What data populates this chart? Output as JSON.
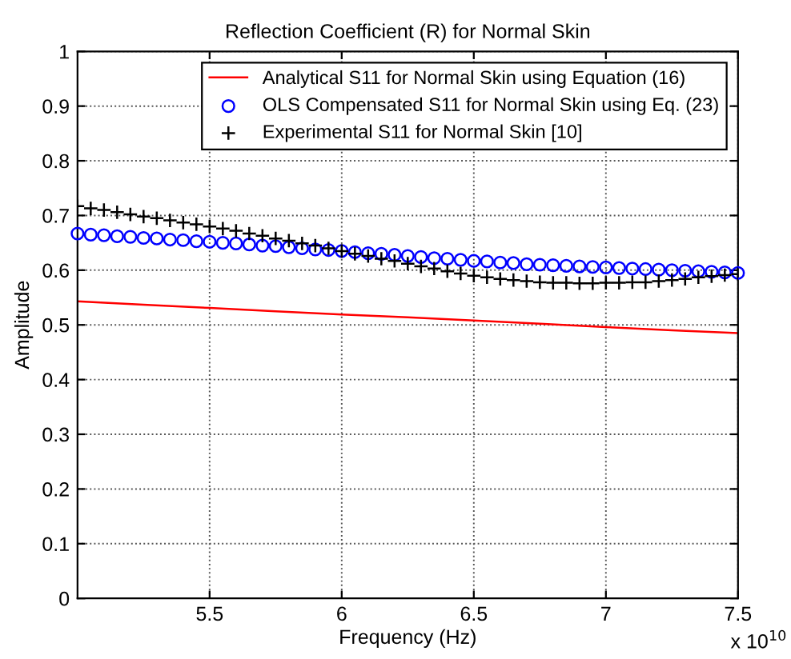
{
  "chart_data": {
    "type": "line",
    "title": "Reflection Coefficient (R) for Normal Skin",
    "xlabel": "Frequency (Hz)",
    "ylabel": "Amplitude",
    "annotations": [
      "x 10$^{10}$"
    ],
    "xlim": [
      5.0,
      7.5
    ],
    "xticks": [
      5.5,
      6,
      6.5,
      7,
      7.5
    ],
    "ylim": [
      0,
      1
    ],
    "yticks": [
      0,
      0.1,
      0.2,
      0.3,
      0.4,
      0.5,
      0.6,
      0.7,
      0.8,
      0.9,
      1
    ],
    "grid": true,
    "legend": "top right",
    "series": [
      {
        "name": "Analytical S11 for Normal Skin using Equation (16)",
        "color": "#ff0000",
        "marker": "none",
        "line_style": "solid",
        "x": [
          5.0,
          5.25,
          5.5,
          5.75,
          6.0,
          6.25,
          6.5,
          6.75,
          7.0,
          7.25,
          7.5
        ],
        "values": [
          0.543,
          0.537,
          0.531,
          0.525,
          0.519,
          0.514,
          0.508,
          0.502,
          0.496,
          0.49,
          0.485
        ]
      },
      {
        "name": "OLS Compensated S11 for Normal Skin using Eq. (23)",
        "color": "#0000ff",
        "type": "scatter",
        "marker": "circle",
        "x": [
          5.0,
          5.05,
          5.1,
          5.15,
          5.2,
          5.25,
          5.3,
          5.35,
          5.4,
          5.45,
          5.5,
          5.55,
          5.6,
          5.65,
          5.7,
          5.75,
          5.8,
          5.85,
          5.9,
          5.95,
          6.0,
          6.05,
          6.1,
          6.15,
          6.2,
          6.25,
          6.3,
          6.35,
          6.4,
          6.45,
          6.5,
          6.55,
          6.6,
          6.65,
          6.7,
          6.75,
          6.8,
          6.85,
          6.9,
          6.95,
          7.0,
          7.05,
          7.1,
          7.15,
          7.2,
          7.25,
          7.3,
          7.35,
          7.4,
          7.45,
          7.5
        ],
        "values": [
          0.667,
          0.665,
          0.664,
          0.662,
          0.661,
          0.659,
          0.658,
          0.656,
          0.655,
          0.653,
          0.652,
          0.65,
          0.649,
          0.647,
          0.645,
          0.644,
          0.642,
          0.64,
          0.638,
          0.637,
          0.635,
          0.633,
          0.631,
          0.63,
          0.628,
          0.626,
          0.624,
          0.622,
          0.621,
          0.619,
          0.617,
          0.616,
          0.614,
          0.613,
          0.611,
          0.61,
          0.609,
          0.608,
          0.607,
          0.606,
          0.605,
          0.604,
          0.603,
          0.602,
          0.601,
          0.6,
          0.599,
          0.598,
          0.597,
          0.596,
          0.595
        ]
      },
      {
        "name": "Experimental S11 for Normal Skin [10]",
        "color": "#000000",
        "type": "scatter",
        "marker": "cross",
        "x": [
          5.0,
          5.05,
          5.1,
          5.15,
          5.2,
          5.25,
          5.3,
          5.35,
          5.4,
          5.45,
          5.5,
          5.55,
          5.6,
          5.65,
          5.7,
          5.75,
          5.8,
          5.85,
          5.9,
          5.95,
          6.0,
          6.05,
          6.1,
          6.15,
          6.2,
          6.25,
          6.3,
          6.35,
          6.4,
          6.45,
          6.5,
          6.55,
          6.6,
          6.65,
          6.7,
          6.75,
          6.8,
          6.85,
          6.9,
          6.95,
          7.0,
          7.05,
          7.1,
          7.15,
          7.2,
          7.25,
          7.3,
          7.35,
          7.4,
          7.45,
          7.5
        ],
        "values": [
          0.717,
          0.713,
          0.71,
          0.706,
          0.702,
          0.698,
          0.695,
          0.691,
          0.687,
          0.684,
          0.68,
          0.676,
          0.672,
          0.667,
          0.663,
          0.658,
          0.654,
          0.649,
          0.645,
          0.64,
          0.635,
          0.63,
          0.626,
          0.621,
          0.617,
          0.612,
          0.607,
          0.603,
          0.598,
          0.594,
          0.59,
          0.587,
          0.584,
          0.582,
          0.58,
          0.578,
          0.577,
          0.577,
          0.576,
          0.576,
          0.577,
          0.577,
          0.578,
          0.578,
          0.58,
          0.582,
          0.584,
          0.587,
          0.589,
          0.591,
          0.593
        ]
      }
    ]
  }
}
